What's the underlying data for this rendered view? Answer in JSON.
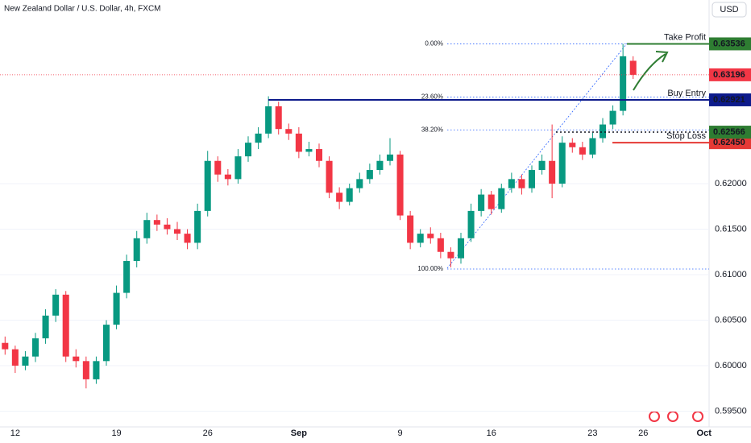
{
  "chart_data": {
    "type": "candlestick",
    "title": "New Zealand Dollar / U.S. Dollar, 4h, FXCM",
    "currency": "USD",
    "categories": [
      null,
      "12",
      null,
      null,
      null,
      null,
      null,
      null,
      null,
      null,
      null,
      "19",
      null,
      null,
      null,
      null,
      null,
      null,
      null,
      null,
      "26",
      null,
      null,
      null,
      null,
      null,
      null,
      null,
      null,
      "Sep",
      null,
      null,
      null,
      null,
      null,
      null,
      null,
      null,
      null,
      "9",
      null,
      null,
      null,
      null,
      null,
      null,
      null,
      null,
      "16",
      null,
      null,
      null,
      null,
      null,
      null,
      null,
      null,
      null,
      "23",
      null,
      null,
      null,
      null,
      "26",
      null,
      null,
      null,
      null,
      null,
      "Oct"
    ],
    "open": [
      0.6025,
      0.6018,
      0.6,
      0.601,
      0.603,
      0.6055,
      0.6078,
      0.601,
      0.6005,
      0.5985,
      0.6005,
      0.6045,
      0.608,
      0.6115,
      0.614,
      0.616,
      0.6155,
      0.615,
      0.6145,
      0.6135,
      0.617,
      0.6225,
      0.621,
      0.6205,
      0.623,
      0.6245,
      0.6255,
      0.6285,
      0.626,
      0.6255,
      0.6235,
      0.6238,
      0.6225,
      0.619,
      0.618,
      0.6195,
      0.6205,
      0.6215,
      0.6225,
      0.6232,
      0.6165,
      0.6135,
      0.6145,
      0.614,
      0.6125,
      0.6118,
      0.614,
      0.617,
      0.6188,
      0.6172,
      0.6195,
      0.6205,
      0.6195,
      0.6215,
      0.6225,
      0.62,
      0.6245,
      0.624,
      0.6232,
      0.625,
      0.6265,
      0.628,
      0.6335,
      null,
      null,
      null,
      null,
      null,
      null,
      null
    ],
    "high": [
      0.6032,
      0.6022,
      0.6016,
      0.6036,
      0.6062,
      0.6084,
      0.6082,
      0.6018,
      0.601,
      0.601,
      0.605,
      0.6088,
      0.6122,
      0.6148,
      0.6168,
      0.6166,
      0.6162,
      0.6158,
      0.615,
      0.6178,
      0.6236,
      0.623,
      0.6216,
      0.6238,
      0.6252,
      0.6262,
      0.6296,
      0.629,
      0.6266,
      0.6262,
      0.6246,
      0.6244,
      0.623,
      0.6196,
      0.62,
      0.6212,
      0.6222,
      0.6232,
      0.625,
      0.6236,
      0.617,
      0.615,
      0.6152,
      0.6146,
      0.613,
      0.6146,
      0.6178,
      0.6194,
      0.6192,
      0.62,
      0.6212,
      0.621,
      0.622,
      0.6232,
      0.6265,
      0.6252,
      0.625,
      0.6246,
      0.6256,
      0.6272,
      0.6286,
      0.63536,
      0.634,
      null,
      null,
      null,
      null,
      null,
      null,
      null
    ],
    "low": [
      0.6012,
      0.5992,
      0.5995,
      0.6004,
      0.6024,
      0.6048,
      0.6004,
      0.5998,
      0.5975,
      0.598,
      0.6,
      0.604,
      0.6074,
      0.6108,
      0.6134,
      0.6148,
      0.6144,
      0.6138,
      0.6128,
      0.6128,
      0.6164,
      0.6202,
      0.6198,
      0.62,
      0.6224,
      0.6238,
      0.625,
      0.6254,
      0.6248,
      0.6228,
      0.623,
      0.6218,
      0.6184,
      0.6172,
      0.6176,
      0.619,
      0.62,
      0.621,
      0.622,
      0.616,
      0.6128,
      0.613,
      0.6134,
      0.6118,
      0.6108,
      0.6112,
      0.6136,
      0.6164,
      0.6166,
      0.6168,
      0.619,
      0.6188,
      0.619,
      0.621,
      0.6184,
      0.6196,
      0.6234,
      0.6226,
      0.6228,
      0.6245,
      0.626,
      0.6275,
      0.6315,
      null,
      null,
      null,
      null,
      null,
      null,
      null
    ],
    "close": [
      0.6018,
      0.6,
      0.601,
      0.603,
      0.6055,
      0.6078,
      0.601,
      0.6005,
      0.5985,
      0.6005,
      0.6045,
      0.608,
      0.6115,
      0.614,
      0.616,
      0.6155,
      0.615,
      0.6145,
      0.6135,
      0.617,
      0.6225,
      0.621,
      0.6205,
      0.623,
      0.6245,
      0.6255,
      0.6285,
      0.626,
      0.6255,
      0.6235,
      0.6238,
      0.6225,
      0.619,
      0.618,
      0.6195,
      0.6205,
      0.6215,
      0.6225,
      0.6232,
      0.6165,
      0.6135,
      0.6145,
      0.614,
      0.6125,
      0.6118,
      0.614,
      0.617,
      0.6188,
      0.6172,
      0.6195,
      0.6205,
      0.6195,
      0.6215,
      0.6225,
      0.62,
      0.6245,
      0.624,
      0.6232,
      0.625,
      0.6265,
      0.628,
      0.634,
      0.63196,
      null,
      null,
      null,
      null,
      null,
      null,
      null
    ],
    "up_color": "#089981",
    "down_color": "#f23645",
    "ylim": [
      0.59327,
      0.64018
    ],
    "yticks": [
      {
        "value": 0.595,
        "label": "0.59500"
      },
      {
        "value": 0.6,
        "label": "0.60000"
      },
      {
        "value": 0.605,
        "label": "0.60500"
      },
      {
        "value": 0.61,
        "label": "0.61000"
      },
      {
        "value": 0.615,
        "label": "0.61500"
      },
      {
        "value": 0.62,
        "label": "0.62000"
      }
    ],
    "fib_levels": [
      {
        "label": "0.00%",
        "value": 0.63536
      },
      {
        "label": "23.60%",
        "value": 0.62952
      },
      {
        "label": "38.20%",
        "value": 0.62591
      },
      {
        "label": "100.00%",
        "value": 0.61062
      }
    ],
    "fib_color": "#2962ff",
    "levels": [
      {
        "name": "Take Profit",
        "value": 0.63536,
        "label": "0.63536",
        "color": "#2e7d32"
      },
      {
        "name": "Buy Entry",
        "value": 0.62921,
        "label": "0.62921",
        "color": "#0d1b8c"
      },
      {
        "name": "Stop Loss",
        "value": 0.6245,
        "label": "0.62450",
        "color": "#e53935"
      }
    ],
    "price_tags": [
      {
        "value": 0.63196,
        "label": "0.63196",
        "color": "#f23645"
      },
      {
        "value": 0.62566,
        "label": "0.62566",
        "color": "#2e7d32"
      }
    ]
  }
}
